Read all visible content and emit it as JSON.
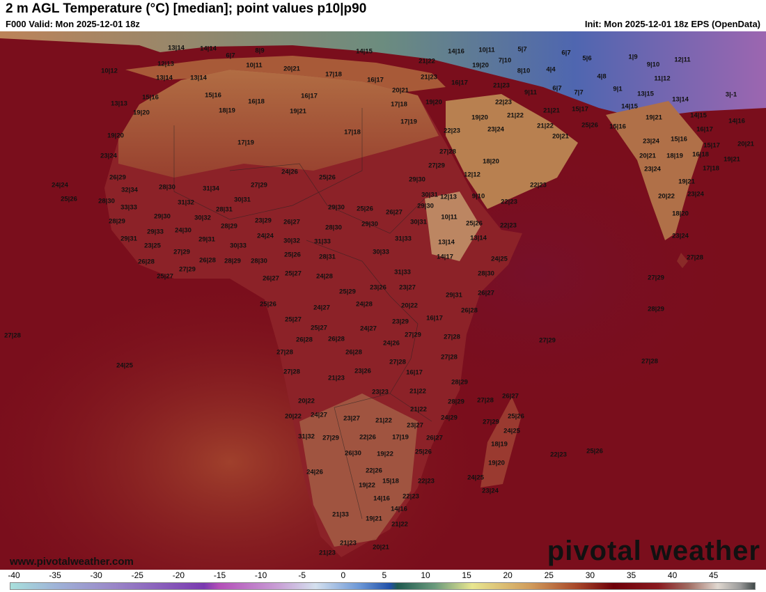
{
  "header": {
    "title": "2 m AGL Temperature (°C) [median]; point values p10|p90",
    "valid": "F000 Valid: Mon 2025-12-01 18z",
    "init": "Init: Mon 2025-12-01 18z EPS (OpenData)"
  },
  "footer": {
    "website": "www.pivotalweather.com",
    "logo": "pivotal weather"
  },
  "colorbar": {
    "ticks": [
      "-40",
      "-35",
      "-30",
      "-25",
      "-20",
      "-15",
      "-10",
      "-5",
      "0",
      "5",
      "10",
      "15",
      "20",
      "25",
      "30",
      "35",
      "40",
      "45"
    ]
  },
  "colors": {
    "ocean": "#7a0e1c",
    "land_warm": "#8e2a2a",
    "land_dry": "#b06a42",
    "cold": "#3a6ab8"
  },
  "points": [
    "13|14",
    "14|14",
    "6|7",
    "8|9",
    "10|11",
    "20|21",
    "14|15",
    "14|16",
    "10|11",
    "5|7",
    "6|7",
    "5|6",
    "10|12",
    "12|13",
    "13|14",
    "13|14",
    "17|18",
    "16|17",
    "21|22",
    "19|20",
    "7|10",
    "8|10",
    "4|4",
    "4|8",
    "1|9",
    "9|10",
    "12|11",
    "11|12",
    "20|21",
    "21|23",
    "16|17",
    "21|23",
    "9|11",
    "6|7",
    "7|7",
    "9|1",
    "13|15",
    "13|14",
    "3|-1",
    "13|13",
    "15|16",
    "15|16",
    "16|18",
    "16|17",
    "17|18",
    "19|20",
    "22|23",
    "19|20",
    "18|19",
    "19|21",
    "17|19",
    "19|20",
    "21|22",
    "21|21",
    "15|17",
    "14|15",
    "19|21",
    "14|15",
    "14|16",
    "16|17",
    "22|23",
    "23|24",
    "21|22",
    "25|26",
    "15|16",
    "20|21",
    "19|20",
    "17|18",
    "17|19",
    "15|16",
    "23|24",
    "15|17",
    "20|21",
    "23|24",
    "27|28",
    "18|20",
    "20|21",
    "18|19",
    "16|18",
    "19|21",
    "27|29",
    "24|26",
    "23|24",
    "17|18",
    "26|29",
    "25|26",
    "12|12",
    "29|30",
    "27|29",
    "24|24",
    "32|34",
    "28|30",
    "31|34",
    "22|23",
    "19|21",
    "25|26",
    "28|30",
    "30|31",
    "12|13",
    "9|10",
    "22|23",
    "20|22",
    "23|24",
    "30|31",
    "31|32",
    "33|33",
    "28|31",
    "29|30",
    "25|26",
    "26|27",
    "29|30",
    "29|30",
    "30|32",
    "18|20",
    "28|29",
    "23|29",
    "26|27",
    "30|31",
    "10|11",
    "25|26",
    "22|23",
    "28|29",
    "28|30",
    "29|30",
    "29|33",
    "24|30",
    "24|24",
    "30|32",
    "31|33",
    "31|33",
    "13|14",
    "13|14",
    "23|24",
    "29|31",
    "29|31",
    "30|33",
    "23|25",
    "30|33",
    "27|29",
    "25|26",
    "28|31",
    "14|17",
    "24|25",
    "27|28",
    "26|28",
    "26|28",
    "28|29",
    "28|30",
    "27|29",
    "31|33",
    "28|30",
    "25|27",
    "25|27",
    "24|28",
    "26|27",
    "27|29",
    "23|26",
    "23|27",
    "25|29",
    "29|31",
    "26|27",
    "24|28",
    "20|22",
    "24|27",
    "25|26",
    "26|28",
    "28|29",
    "25|27",
    "16|17",
    "25|27",
    "24|27",
    "23|29",
    "27|29",
    "27|28",
    "27|28",
    "26|28",
    "26|28",
    "24|26",
    "27|29",
    "27|28",
    "26|28",
    "27|28",
    "27|28",
    "24|25",
    "27|28",
    "27|28",
    "23|26",
    "16|17",
    "21|23",
    "28|29",
    "23|23",
    "21|22",
    "26|27",
    "27|28",
    "28|29",
    "20|22",
    "21|22",
    "25|26",
    "20|22",
    "24|27",
    "23|27",
    "21|22",
    "24|29",
    "27|29",
    "23|27",
    "24|25",
    "31|32",
    "27|29",
    "22|26",
    "17|19",
    "26|27",
    "18|19",
    "26|30",
    "19|22",
    "25|26",
    "22|23",
    "25|26",
    "19|20",
    "24|26",
    "22|26",
    "24|25",
    "19|22",
    "15|18",
    "22|23",
    "23|24",
    "14|16",
    "22|23",
    "14|16",
    "21|33",
    "19|21",
    "21|22",
    "21|23",
    "20|21",
    "21|23"
  ]
}
